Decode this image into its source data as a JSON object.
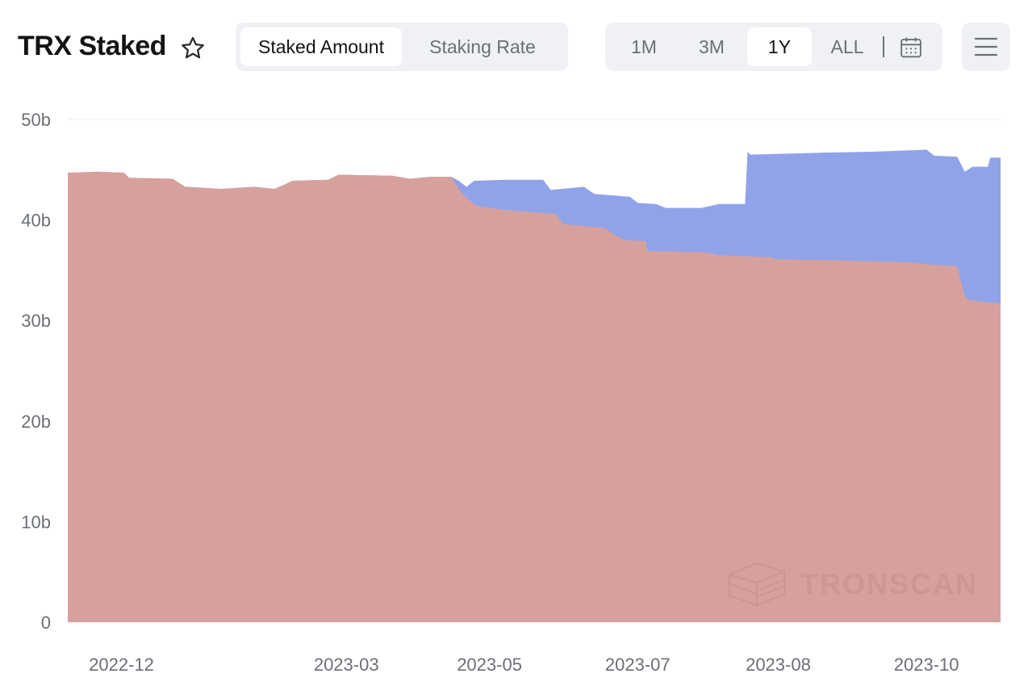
{
  "header": {
    "title": "TRX Staked",
    "mode_tabs": [
      {
        "label": "Staked Amount",
        "active": true
      },
      {
        "label": "Staking Rate",
        "active": false
      }
    ],
    "range_tabs": [
      {
        "label": "1M",
        "active": false
      },
      {
        "label": "3M",
        "active": false
      },
      {
        "label": "1Y",
        "active": true
      },
      {
        "label": "ALL",
        "active": false
      }
    ],
    "icons": {
      "favorite": "star-icon",
      "calendar": "calendar-icon",
      "menu": "hamburger-menu-icon"
    }
  },
  "watermark": {
    "text": "TRONSCAN",
    "icon": "tronscan-logo-icon"
  },
  "colors": {
    "series_lower": "#d6a19d",
    "series_upper": "#91a3e8",
    "grid": "#ebedf0",
    "text_muted": "#6b6f76",
    "control_bg": "#eff1f4"
  },
  "chart_data": {
    "type": "area",
    "stacked": true,
    "title": "",
    "xlabel": "",
    "ylabel": "",
    "ylim": [
      0,
      50
    ],
    "y_unit": "b",
    "yticks": [
      {
        "value": 0,
        "label": "0"
      },
      {
        "value": 10,
        "label": "10b"
      },
      {
        "value": 20,
        "label": "20b"
      },
      {
        "value": 30,
        "label": "30b"
      },
      {
        "value": 40,
        "label": "40b"
      },
      {
        "value": 50,
        "label": "50b"
      }
    ],
    "xlim": [
      "2022-11-20",
      "2023-11-20"
    ],
    "xticks": [
      {
        "date": "2022-12-11",
        "label": "2022-12"
      },
      {
        "date": "2023-03-09",
        "label": "2023-03"
      },
      {
        "date": "2023-05-04",
        "label": "2023-05"
      },
      {
        "date": "2023-07-01",
        "label": "2023-07"
      },
      {
        "date": "2023-08-25",
        "label": "2023-08"
      },
      {
        "date": "2023-10-22",
        "label": "2023-10"
      }
    ],
    "grid": true,
    "legend": "none",
    "series": [
      {
        "points": [
          [
            "2022-11-20",
            44.7
          ],
          [
            "2022-12-02",
            44.8
          ],
          [
            "2022-12-12",
            44.7
          ],
          [
            "2022-12-14",
            44.2
          ],
          [
            "2022-12-31",
            44.1
          ],
          [
            "2023-01-05",
            43.3
          ],
          [
            "2023-01-19",
            43.1
          ],
          [
            "2023-02-01",
            43.3
          ],
          [
            "2023-02-09",
            43.1
          ],
          [
            "2023-02-16",
            43.9
          ],
          [
            "2023-03-02",
            44.0
          ],
          [
            "2023-03-06",
            44.5
          ],
          [
            "2023-03-27",
            44.4
          ],
          [
            "2023-04-03",
            44.1
          ],
          [
            "2023-04-11",
            44.3
          ],
          [
            "2023-04-19",
            44.3
          ],
          [
            "2023-04-23",
            42.7
          ],
          [
            "2023-04-26",
            42.0
          ],
          [
            "2023-04-29",
            41.4
          ],
          [
            "2023-05-10",
            41.0
          ],
          [
            "2023-05-20",
            40.8
          ],
          [
            "2023-05-30",
            40.6
          ],
          [
            "2023-06-02",
            39.6
          ],
          [
            "2023-06-18",
            39.2
          ],
          [
            "2023-06-22",
            38.5
          ],
          [
            "2023-06-26",
            38.0
          ],
          [
            "2023-07-04",
            37.9
          ],
          [
            "2023-07-05",
            36.9
          ],
          [
            "2023-07-27",
            36.8
          ],
          [
            "2023-08-02",
            36.5
          ],
          [
            "2023-08-22",
            36.3
          ],
          [
            "2023-08-24",
            36.1
          ],
          [
            "2023-09-14",
            36.0
          ],
          [
            "2023-10-15",
            35.8
          ],
          [
            "2023-10-22",
            35.6
          ],
          [
            "2023-11-03",
            35.4
          ],
          [
            "2023-11-06",
            32.4
          ],
          [
            "2023-11-08",
            32.0
          ],
          [
            "2023-11-20",
            31.7
          ]
        ]
      },
      {
        "points": [
          [
            "2022-11-20",
            44.7
          ],
          [
            "2022-12-02",
            44.8
          ],
          [
            "2022-12-12",
            44.7
          ],
          [
            "2022-12-14",
            44.2
          ],
          [
            "2022-12-31",
            44.1
          ],
          [
            "2023-01-05",
            43.3
          ],
          [
            "2023-01-19",
            43.1
          ],
          [
            "2023-02-01",
            43.3
          ],
          [
            "2023-02-09",
            43.1
          ],
          [
            "2023-02-16",
            43.9
          ],
          [
            "2023-03-02",
            44.0
          ],
          [
            "2023-03-06",
            44.5
          ],
          [
            "2023-03-27",
            44.4
          ],
          [
            "2023-04-03",
            44.1
          ],
          [
            "2023-04-11",
            44.3
          ],
          [
            "2023-04-19",
            44.3
          ],
          [
            "2023-04-22",
            43.9
          ],
          [
            "2023-04-25",
            43.3
          ],
          [
            "2023-04-28",
            43.9
          ],
          [
            "2023-05-10",
            44.0
          ],
          [
            "2023-05-25",
            44.0
          ],
          [
            "2023-05-28",
            43.0
          ],
          [
            "2023-06-10",
            43.3
          ],
          [
            "2023-06-14",
            42.6
          ],
          [
            "2023-06-28",
            42.3
          ],
          [
            "2023-07-01",
            41.7
          ],
          [
            "2023-07-08",
            41.6
          ],
          [
            "2023-07-12",
            41.2
          ],
          [
            "2023-07-26",
            41.2
          ],
          [
            "2023-08-02",
            41.6
          ],
          [
            "2023-08-12",
            41.6
          ],
          [
            "2023-08-13",
            46.8
          ],
          [
            "2023-08-14",
            46.5
          ],
          [
            "2023-09-12",
            46.7
          ],
          [
            "2023-10-02",
            46.8
          ],
          [
            "2023-10-22",
            47.0
          ],
          [
            "2023-10-25",
            46.4
          ],
          [
            "2023-11-03",
            46.3
          ],
          [
            "2023-11-06",
            44.8
          ],
          [
            "2023-11-09",
            45.3
          ],
          [
            "2023-11-15",
            45.3
          ],
          [
            "2023-11-16",
            46.2
          ],
          [
            "2023-11-20",
            46.2
          ]
        ]
      }
    ]
  }
}
